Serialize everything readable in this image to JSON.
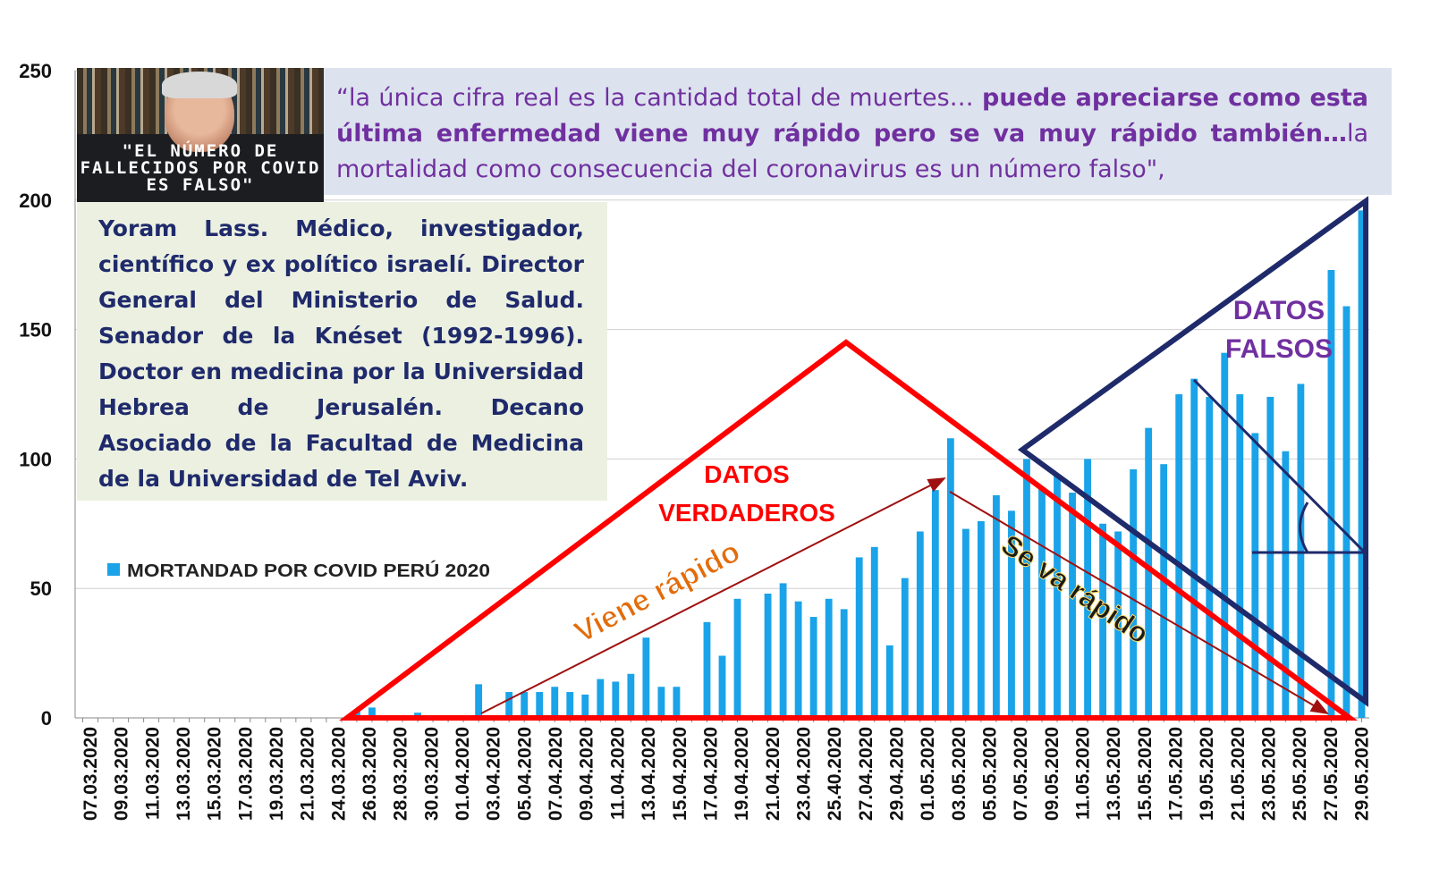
{
  "quote": {
    "part1": "“la única cifra real es la cantidad total de muertes… ",
    "part2": "puede apreciarse como esta última enfermedad viene muy rápido pero se va muy rápido también…",
    "part3": "la mortalidad como consecuencia del coronavirus es un número falso\","
  },
  "photo_caption": "\"EL NÚMERO DE FALLECIDOS POR COVID ES FALSO\"",
  "bio": "Yoram Lass. Médico, investigador, científico y ex político israelí. Director General del Ministerio de Salud. Senador de la Knéset (1992-1996). Doctor en medicina por la Universidad Hebrea de Jerusalén. Decano Asociado de la Facultad de Medicina de la Universidad de Tel Aviv.",
  "annotations": {
    "datos_verdaderos": [
      "DATOS",
      "VERDADEROS"
    ],
    "datos_falsos": [
      "DATOS",
      "FALSOS"
    ],
    "viene_rapido": "Viene rápido",
    "se_va_rapido": "Se va rápido"
  },
  "colors": {
    "bars": "#1aa3e8",
    "true_triangle": "#ff0000",
    "false_triangle": "#1f2a6b",
    "arrows": "#a01010",
    "quote_text": "#7030a0",
    "datos_falsos_text": "#7030a0",
    "viene_rapido_text": "#e36c0a",
    "se_va_rapido_text": "#1a1a1a"
  },
  "chart_data": {
    "type": "bar",
    "legend_position": "left",
    "grid": true,
    "ylim": [
      0,
      250
    ],
    "yticks": [
      0,
      50,
      100,
      150,
      200,
      250
    ],
    "x_labels": [
      "07.03.2020",
      "09.03.2020",
      "11.03.2020",
      "13.03.2020",
      "15.03.2020",
      "17.03.2020",
      "19.03.2020",
      "21.03.2020",
      "24.03.2020",
      "26.03.2020",
      "28.03.2020",
      "30.03.2020",
      "01.04.2020",
      "03.04.2020",
      "05.04.2020",
      "07.04.2020",
      "09.04.2020",
      "11.04.2020",
      "13.04.2020",
      "15.04.2020",
      "17.04.2020",
      "19.04.2020",
      "21.04.2020",
      "23.04.2020",
      "25.40.2020",
      "27.04.2020",
      "29.04.2020",
      "01.05.2020",
      "03.05.2020",
      "05.05.2020",
      "07.05.2020",
      "09.05.2020",
      "11.05.2020",
      "13.05.2020",
      "15.05.2020",
      "17.05.2020",
      "19.05.2020",
      "21.05.2020",
      "23.05.2020",
      "25.05.2020",
      "27.05.2020",
      "29.05.2020"
    ],
    "series": [
      {
        "name": "MORTANDAD POR COVID PERÚ 2020",
        "values": [
          0,
          0,
          0,
          0,
          0,
          0,
          0,
          0,
          0,
          0,
          0,
          0,
          0,
          0,
          0,
          0,
          0,
          0,
          3,
          4,
          0,
          0,
          2,
          0,
          0,
          0,
          13,
          0,
          10,
          10,
          10,
          12,
          10,
          9,
          15,
          14,
          17,
          31,
          12,
          12,
          0,
          37,
          24,
          46,
          0,
          48,
          52,
          45,
          39,
          46,
          42,
          62,
          66,
          28,
          54,
          72,
          88,
          108,
          73,
          76,
          86,
          80,
          100,
          89,
          94,
          87,
          100,
          75,
          72,
          96,
          112,
          98,
          125,
          131,
          124,
          141,
          125,
          110,
          124,
          103,
          129,
          0,
          173,
          159,
          196
        ]
      }
    ]
  }
}
